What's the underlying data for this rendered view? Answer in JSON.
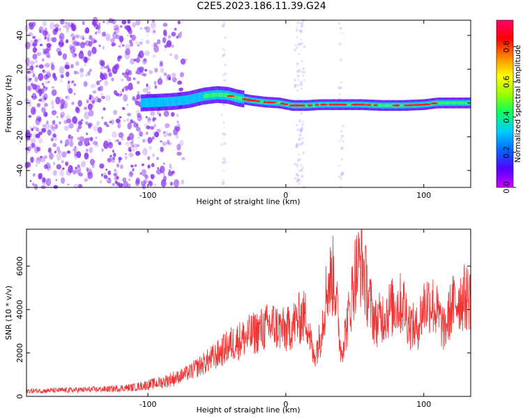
{
  "title": "C2E5.2023.186.11.39.G24",
  "colors": {
    "snr_line": "#ee3333",
    "spectrum_band": [
      "#5500ff",
      "#00ccff",
      "#33ff66",
      "#ff2222"
    ],
    "noise_points": "#8833ee",
    "colorbar": [
      "#cc00ff",
      "#5500ff",
      "#0066ff",
      "#00ccff",
      "#00ff66",
      "#99ff00",
      "#ffff00",
      "#ff8800",
      "#ff0000",
      "#ff0066"
    ]
  },
  "chart_data": [
    {
      "type": "heatmap",
      "title": "",
      "xlabel": "Height of straight line (km)",
      "ylabel": "Frequency (Hz)",
      "xlim": [
        -188,
        134
      ],
      "ylim": [
        -50,
        49
      ],
      "xticks": [
        -100,
        0,
        100
      ],
      "yticks": [
        -40,
        -20,
        0,
        20,
        40
      ],
      "colorbar": {
        "label": "Normalized spectral amplitude",
        "range": [
          0,
          0.95
        ],
        "ticks": [
          "0.0",
          "0.2",
          "0.4",
          "0.6",
          "0.8"
        ]
      },
      "ridge_line": {
        "x": [
          -105,
          -90,
          -80,
          -70,
          -60,
          -50,
          -42,
          -35,
          -25,
          -15,
          -5,
          5,
          15,
          25,
          40,
          55,
          70,
          85,
          100,
          110,
          134
        ],
        "y": [
          0,
          0.5,
          1,
          2,
          4,
          5,
          4.5,
          3,
          1.5,
          0.5,
          0,
          -1.5,
          -1.5,
          -1,
          -1,
          -1,
          -1.5,
          -1.5,
          -1,
          0,
          0
        ]
      },
      "noise_region": {
        "x_from": -188,
        "x_to": -72
      }
    },
    {
      "type": "line",
      "title": "",
      "xlabel": "Height of straight line (km)",
      "ylabel": "SNR (10 * v/v)",
      "xlim": [
        -188,
        134
      ],
      "ylim": [
        0,
        7700
      ],
      "xticks": [
        -100,
        0,
        100
      ],
      "yticks": [
        0,
        2000,
        4000,
        6000
      ],
      "series": [
        {
          "x": [
            -188,
            -170,
            -150,
            -130,
            -110,
            -90,
            -80,
            -70,
            -60,
            -50,
            -40,
            -30,
            -20,
            -10,
            0,
            10,
            15,
            20,
            25,
            30,
            35,
            40,
            45,
            50,
            55,
            60,
            65,
            70,
            75,
            80,
            85,
            90,
            95,
            100,
            105,
            110,
            115,
            120,
            125,
            134
          ],
          "y": [
            250,
            270,
            300,
            330,
            420,
            650,
            850,
            1100,
            1500,
            1900,
            2400,
            2700,
            3000,
            3300,
            3000,
            3600,
            3700,
            1800,
            2700,
            5100,
            5600,
            2000,
            3500,
            5600,
            6300,
            4500,
            3400,
            3700,
            4000,
            4200,
            4300,
            3300,
            3100,
            4200,
            4400,
            3800,
            3000,
            4100,
            4500,
            4600
          ]
        }
      ]
    }
  ]
}
